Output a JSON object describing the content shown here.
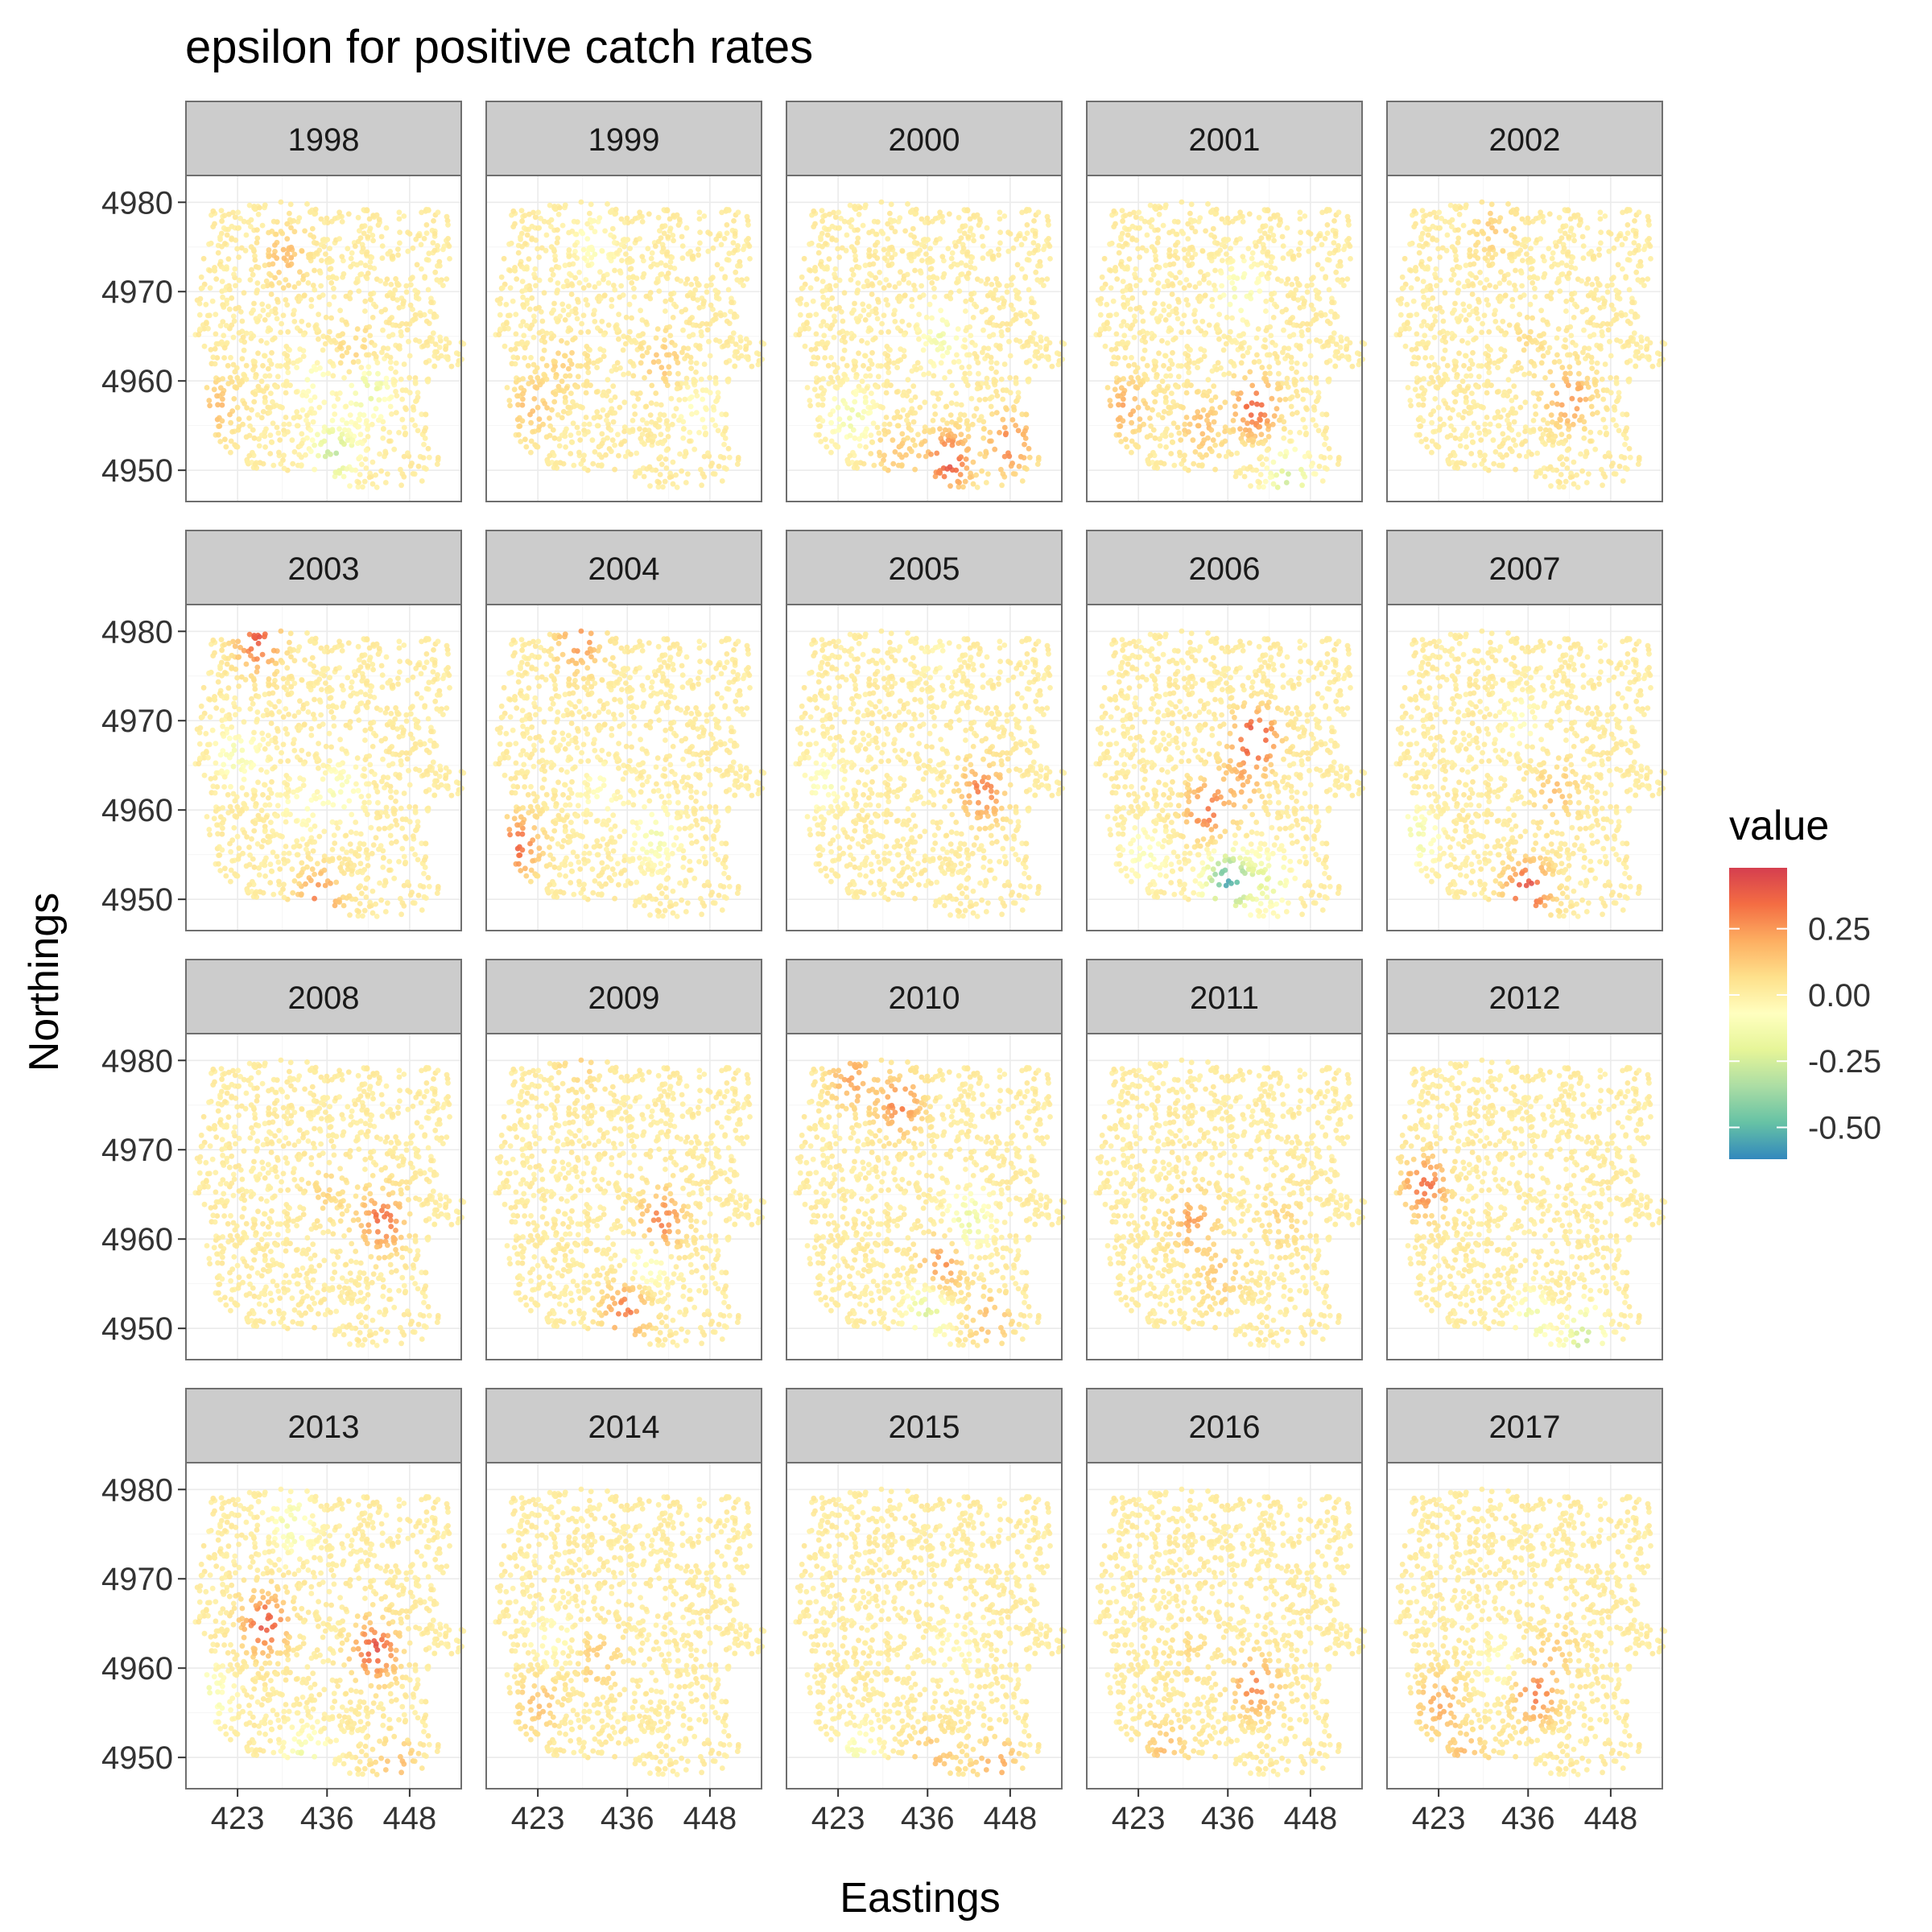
{
  "chart_data": {
    "type": "scatter",
    "title": "epsilon for positive catch rates",
    "xlabel": "Eastings",
    "ylabel": "Northings",
    "x_ticks": [
      423,
      436,
      448
    ],
    "y_ticks": [
      4950,
      4960,
      4970,
      4980
    ],
    "xlim": [
      415.5,
      455.5
    ],
    "ylim": [
      4946.5,
      4983
    ],
    "legend": {
      "title": "value",
      "position": "right",
      "ticks": [
        0.25,
        0.0,
        -0.25,
        -0.5
      ],
      "tick_labels": [
        "0.25",
        "0.00",
        "-0.25",
        "-0.50"
      ],
      "range": [
        -0.62,
        0.48
      ],
      "palette": [
        "#3288bd",
        "#66c2a5",
        "#abdda4",
        "#e6f598",
        "#ffffbf",
        "#fee08b",
        "#fdae61",
        "#f46d43",
        "#d53e4f"
      ]
    },
    "grid": true,
    "facets": [
      {
        "year": "1998",
        "hotspots": [
          [
            430,
            4974,
            0.14
          ],
          [
            440,
            4963,
            0.1
          ],
          [
            420,
            4957,
            0.15
          ],
          [
            442,
            4959,
            -0.22
          ],
          [
            437,
            4952,
            -0.3
          ],
          [
            434,
            4960,
            -0.1
          ]
        ]
      },
      {
        "year": "1999",
        "hotspots": [
          [
            441,
            4962,
            0.12
          ],
          [
            422,
            4957,
            0.14
          ],
          [
            427,
            4962,
            0.08
          ],
          [
            431,
            4975,
            -0.1
          ],
          [
            446,
            4957,
            -0.08
          ]
        ]
      },
      {
        "year": "2000",
        "hotspots": [
          [
            439,
            4951,
            0.4
          ],
          [
            448,
            4953,
            0.3
          ],
          [
            425,
            4956,
            -0.18
          ],
          [
            438,
            4965,
            -0.15
          ],
          [
            431,
            4952,
            0.12
          ]
        ]
      },
      {
        "year": "2001",
        "hotspots": [
          [
            440,
            4957,
            0.36
          ],
          [
            421,
            4957,
            0.2
          ],
          [
            432,
            4955,
            0.15
          ],
          [
            438,
            4970,
            -0.15
          ],
          [
            445,
            4949,
            -0.28
          ]
        ]
      },
      {
        "year": "2002",
        "hotspots": [
          [
            442,
            4958,
            0.25
          ],
          [
            431,
            4977,
            0.1
          ],
          [
            436,
            4964,
            0.06
          ]
        ]
      },
      {
        "year": "2003",
        "hotspots": [
          [
            426,
            4979,
            0.38
          ],
          [
            435,
            4950,
            0.28
          ],
          [
            423,
            4966,
            -0.14
          ],
          [
            438,
            4962,
            -0.12
          ],
          [
            432,
            4960,
            -0.08
          ]
        ]
      },
      {
        "year": "2004",
        "hotspots": [
          [
            420,
            4956,
            0.35
          ],
          [
            429,
            4979,
            0.26
          ],
          [
            440,
            4957,
            -0.16
          ],
          [
            432,
            4962,
            -0.08
          ]
        ]
      },
      {
        "year": "2005",
        "hotspots": [
          [
            444,
            4962,
            0.3
          ],
          [
            421,
            4963,
            -0.12
          ],
          [
            437,
            4978,
            -0.05
          ]
        ]
      },
      {
        "year": "2006",
        "hotspots": [
          [
            440,
            4968,
            0.44
          ],
          [
            433,
            4960,
            0.32
          ],
          [
            436,
            4952,
            -0.55
          ],
          [
            442,
            4952,
            -0.2
          ],
          [
            424,
            4955,
            -0.12
          ],
          [
            438,
            4963,
            0.15
          ]
        ]
      },
      {
        "year": "2007",
        "hotspots": [
          [
            436,
            4951,
            0.42
          ],
          [
            420,
            4957,
            -0.16
          ],
          [
            440,
            4962,
            0.14
          ],
          [
            435,
            4970,
            -0.08
          ]
        ]
      },
      {
        "year": "2008",
        "hotspots": [
          [
            444,
            4962,
            0.34
          ],
          [
            436,
            4965,
            0.08
          ]
        ]
      },
      {
        "year": "2009",
        "hotspots": [
          [
            441,
            4962,
            0.3
          ],
          [
            436,
            4952,
            0.3
          ],
          [
            439,
            4957,
            -0.14
          ],
          [
            429,
            4980,
            0.1
          ]
        ]
      },
      {
        "year": "2010",
        "hotspots": [
          [
            432,
            4975,
            0.28
          ],
          [
            425,
            4978,
            0.22
          ],
          [
            438,
            4957,
            0.25
          ],
          [
            442,
            4962,
            -0.2
          ],
          [
            436,
            4952,
            -0.25
          ],
          [
            445,
            4951,
            0.15
          ]
        ]
      },
      {
        "year": "2011",
        "hotspots": [
          [
            431,
            4962,
            0.22
          ],
          [
            435,
            4956,
            0.12
          ],
          [
            444,
            4962,
            0.08
          ]
        ]
      },
      {
        "year": "2012",
        "hotspots": [
          [
            421,
            4966,
            0.34
          ],
          [
            437,
            4951,
            -0.2
          ],
          [
            444,
            4949,
            -0.3
          ],
          [
            440,
            4951,
            0.08
          ]
        ]
      },
      {
        "year": "2013",
        "hotspots": [
          [
            427,
            4965,
            0.4
          ],
          [
            443,
            4962,
            0.4
          ],
          [
            431,
            4976,
            -0.16
          ],
          [
            419,
            4957,
            -0.14
          ],
          [
            433,
            4950,
            -0.18
          ],
          [
            446,
            4949,
            0.15
          ]
        ]
      },
      {
        "year": "2014",
        "hotspots": [
          [
            423,
            4956,
            0.14
          ],
          [
            432,
            4961,
            0.12
          ],
          [
            425,
            4963,
            -0.08
          ]
        ]
      },
      {
        "year": "2015",
        "hotspots": [
          [
            446,
            4949,
            0.2
          ],
          [
            437,
            4950,
            0.15
          ],
          [
            426,
            4950,
            -0.14
          ],
          [
            440,
            4962,
            -0.06
          ]
        ]
      },
      {
        "year": "2016",
        "hotspots": [
          [
            440,
            4958,
            0.28
          ],
          [
            427,
            4951,
            0.14
          ],
          [
            431,
            4962,
            0.06
          ]
        ]
      },
      {
        "year": "2017",
        "hotspots": [
          [
            437,
            4957,
            0.3
          ],
          [
            423,
            4956,
            0.2
          ],
          [
            427,
            4950,
            0.15
          ],
          [
            440,
            4962,
            0.1
          ],
          [
            432,
            4960,
            -0.1
          ]
        ]
      }
    ]
  }
}
